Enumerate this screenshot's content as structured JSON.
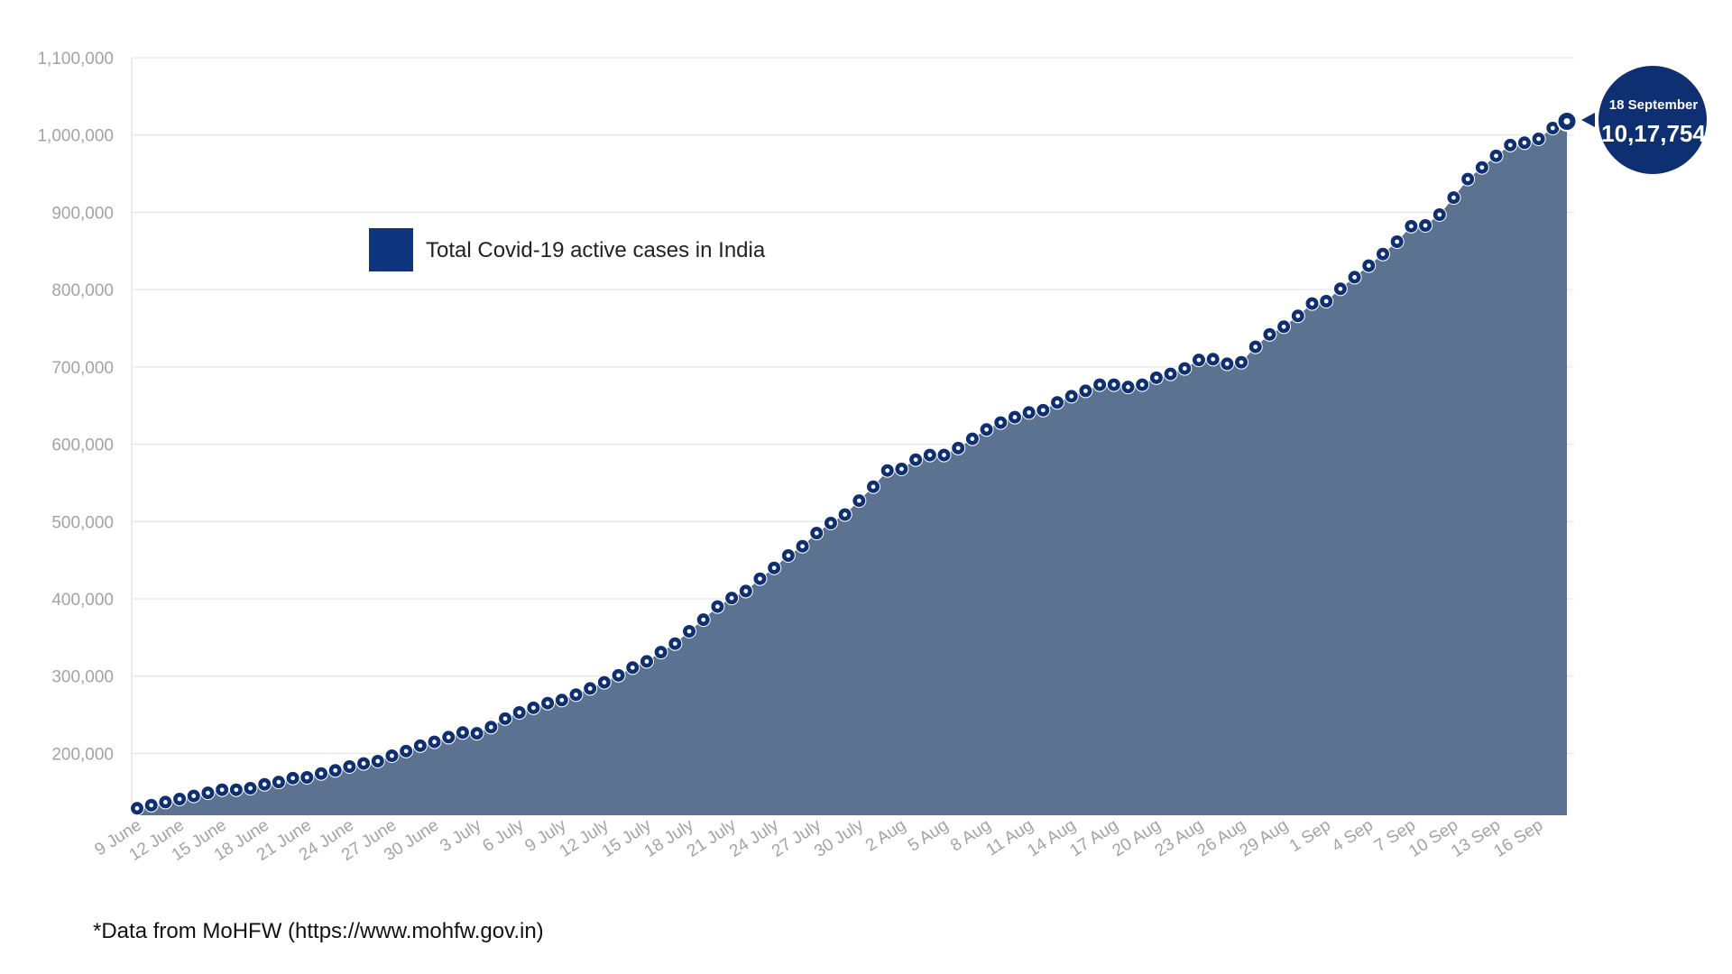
{
  "chart_data": {
    "type": "area",
    "legend": {
      "label": "Total Covid-19 active cases in India",
      "placement": "top-left"
    },
    "footnote": "*Data from MoHFW (https://www.mohfw.gov.in)",
    "callout": {
      "date": "18 September",
      "value_text": "10,17,754",
      "value": 1017754
    },
    "colors": {
      "fill": "#5b7290",
      "marker": "#0f2f73",
      "legend_swatch": "#0f357f",
      "callout": "#0f2f73",
      "grid": "#e6e6e6",
      "axis_text": "#a3a3a3"
    },
    "ylim": [
      120000,
      1100000
    ],
    "yticks": [
      200000,
      300000,
      400000,
      500000,
      600000,
      700000,
      800000,
      900000,
      1000000,
      1100000
    ],
    "ytick_labels": [
      "200,000",
      "300,000",
      "400,000",
      "500,000",
      "600,000",
      "700,000",
      "800,000",
      "900,000",
      "1,000,000",
      "1,100,000"
    ],
    "grid": true,
    "x_start_date": "2020-06-09",
    "xtick_labels": [
      "9 June",
      "12 June",
      "15 June",
      "18 June",
      "21 June",
      "24 June",
      "27 June",
      "30 June",
      "3 July",
      "6 July",
      "9 July",
      "12 July",
      "15 July",
      "18 July",
      "21 July",
      "24 July",
      "27 July",
      "30 July",
      "2 Aug",
      "5 Aug",
      "8 Aug",
      "11 Aug",
      "14 Aug",
      "17 Aug",
      "20 Aug",
      "23 Aug",
      "26 Aug",
      "29 Aug",
      "1 Sep",
      "4 Sep",
      "7 Sep",
      "10 Sep",
      "13 Sep",
      "16 Sep"
    ],
    "values": [
      129000,
      133000,
      137000,
      141000,
      145000,
      149000,
      153000,
      153000,
      155000,
      160000,
      163000,
      168000,
      169000,
      174000,
      178000,
      183000,
      187000,
      190000,
      197000,
      203000,
      210000,
      215000,
      221000,
      227000,
      226000,
      234000,
      245000,
      253000,
      259000,
      265000,
      269000,
      276000,
      284000,
      292000,
      301000,
      311000,
      319000,
      331000,
      342000,
      358000,
      373000,
      390000,
      401000,
      410000,
      426000,
      440000,
      456000,
      468000,
      485000,
      498000,
      509000,
      527000,
      545000,
      566000,
      568000,
      580000,
      586000,
      586000,
      595000,
      607000,
      619000,
      628000,
      635000,
      641000,
      644000,
      654000,
      662000,
      669000,
      677000,
      677000,
      674000,
      677000,
      686000,
      691000,
      698000,
      709000,
      710000,
      704000,
      706000,
      726000,
      742000,
      752000,
      766000,
      782000,
      785000,
      801000,
      816000,
      831000,
      846000,
      862000,
      882000,
      883000,
      897000,
      919000,
      943000,
      958000,
      973000,
      987000,
      990000,
      995000,
      1009000,
      1017754
    ]
  }
}
